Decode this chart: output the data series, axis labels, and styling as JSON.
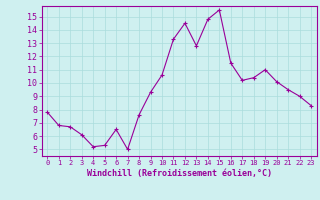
{
  "x": [
    0,
    1,
    2,
    3,
    4,
    5,
    6,
    7,
    8,
    9,
    10,
    11,
    12,
    13,
    14,
    15,
    16,
    17,
    18,
    19,
    20,
    21,
    22,
    23
  ],
  "y": [
    7.8,
    6.8,
    6.7,
    6.1,
    5.2,
    5.3,
    6.5,
    5.0,
    7.6,
    9.3,
    10.6,
    13.3,
    14.5,
    12.8,
    14.8,
    15.5,
    11.5,
    10.2,
    10.4,
    11.0,
    10.1,
    9.5,
    9.0,
    8.3
  ],
  "line_color": "#990099",
  "marker": "+",
  "marker_size": 3,
  "bg_color": "#cff0f0",
  "grid_color": "#aadddd",
  "xlabel": "Windchill (Refroidissement éolien,°C)",
  "xlabel_color": "#990099",
  "tick_color": "#990099",
  "ylim": [
    4.5,
    15.8
  ],
  "xlim": [
    -0.5,
    23.5
  ],
  "yticks": [
    5,
    6,
    7,
    8,
    9,
    10,
    11,
    12,
    13,
    14,
    15
  ],
  "xticks": [
    0,
    1,
    2,
    3,
    4,
    5,
    6,
    7,
    8,
    9,
    10,
    11,
    12,
    13,
    14,
    15,
    16,
    17,
    18,
    19,
    20,
    21,
    22,
    23
  ]
}
